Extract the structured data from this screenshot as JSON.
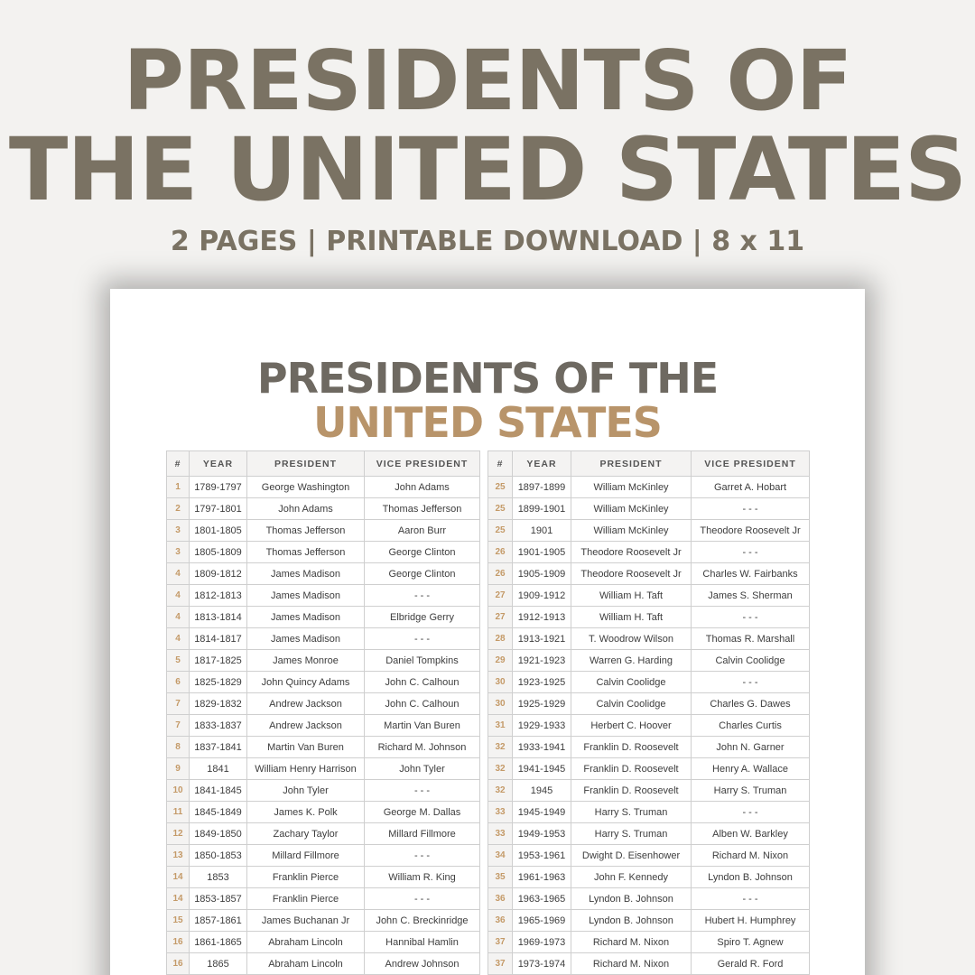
{
  "hero": {
    "title_line1": "PRESIDENTS OF",
    "title_line2": "THE UNITED STATES",
    "subtitle": "2 PAGES | PRINTABLE DOWNLOAD | 8 x 11"
  },
  "document": {
    "title_line1": "PRESIDENTS OF THE",
    "title_line2": "UNITED STATES",
    "colors": {
      "title_dark": "#6e6961",
      "title_accent": "#b8946a",
      "number_accent": "#c49a68"
    },
    "columns": [
      "#",
      "YEAR",
      "PRESIDENT",
      "VICE PRESIDENT"
    ],
    "left_table": [
      [
        "1",
        "1789-1797",
        "George Washington",
        "John Adams"
      ],
      [
        "2",
        "1797-1801",
        "John Adams",
        "Thomas Jefferson"
      ],
      [
        "3",
        "1801-1805",
        "Thomas Jefferson",
        "Aaron Burr"
      ],
      [
        "3",
        "1805-1809",
        "Thomas Jefferson",
        "George Clinton"
      ],
      [
        "4",
        "1809-1812",
        "James Madison",
        "George Clinton"
      ],
      [
        "4",
        "1812-1813",
        "James Madison",
        "- - -"
      ],
      [
        "4",
        "1813-1814",
        "James Madison",
        "Elbridge Gerry"
      ],
      [
        "4",
        "1814-1817",
        "James Madison",
        "- - -"
      ],
      [
        "5",
        "1817-1825",
        "James Monroe",
        "Daniel Tompkins"
      ],
      [
        "6",
        "1825-1829",
        "John Quincy Adams",
        "John C. Calhoun"
      ],
      [
        "7",
        "1829-1832",
        "Andrew Jackson",
        "John C. Calhoun"
      ],
      [
        "7",
        "1833-1837",
        "Andrew Jackson",
        "Martin Van Buren"
      ],
      [
        "8",
        "1837-1841",
        "Martin Van Buren",
        "Richard M. Johnson"
      ],
      [
        "9",
        "1841",
        "William Henry Harrison",
        "John Tyler"
      ],
      [
        "10",
        "1841-1845",
        "John Tyler",
        "- - -"
      ],
      [
        "11",
        "1845-1849",
        "James K. Polk",
        "George M. Dallas"
      ],
      [
        "12",
        "1849-1850",
        "Zachary Taylor",
        "Millard Fillmore"
      ],
      [
        "13",
        "1850-1853",
        "Millard Fillmore",
        "- - -"
      ],
      [
        "14",
        "1853",
        "Franklin Pierce",
        "William R. King"
      ],
      [
        "14",
        "1853-1857",
        "Franklin Pierce",
        "- - -"
      ],
      [
        "15",
        "1857-1861",
        "James Buchanan Jr",
        "John C. Breckinridge"
      ],
      [
        "16",
        "1861-1865",
        "Abraham Lincoln",
        "Hannibal Hamlin"
      ],
      [
        "16",
        "1865",
        "Abraham Lincoln",
        "Andrew Johnson"
      ]
    ],
    "right_table": [
      [
        "25",
        "1897-1899",
        "William McKinley",
        "Garret A. Hobart"
      ],
      [
        "25",
        "1899-1901",
        "William McKinley",
        "- - -"
      ],
      [
        "25",
        "1901",
        "William McKinley",
        "Theodore Roosevelt Jr"
      ],
      [
        "26",
        "1901-1905",
        "Theodore Roosevelt Jr",
        "- - -"
      ],
      [
        "26",
        "1905-1909",
        "Theodore Roosevelt Jr",
        "Charles W. Fairbanks"
      ],
      [
        "27",
        "1909-1912",
        "William H. Taft",
        "James S. Sherman"
      ],
      [
        "27",
        "1912-1913",
        "William H. Taft",
        "- - -"
      ],
      [
        "28",
        "1913-1921",
        "T. Woodrow Wilson",
        "Thomas R. Marshall"
      ],
      [
        "29",
        "1921-1923",
        "Warren G. Harding",
        "Calvin Coolidge"
      ],
      [
        "30",
        "1923-1925",
        "Calvin Coolidge",
        "- - -"
      ],
      [
        "30",
        "1925-1929",
        "Calvin Coolidge",
        "Charles G. Dawes"
      ],
      [
        "31",
        "1929-1933",
        "Herbert C. Hoover",
        "Charles Curtis"
      ],
      [
        "32",
        "1933-1941",
        "Franklin D. Roosevelt",
        "John N. Garner"
      ],
      [
        "32",
        "1941-1945",
        "Franklin D. Roosevelt",
        "Henry A. Wallace"
      ],
      [
        "32",
        "1945",
        "Franklin D. Roosevelt",
        "Harry S. Truman"
      ],
      [
        "33",
        "1945-1949",
        "Harry S. Truman",
        "- - -"
      ],
      [
        "33",
        "1949-1953",
        "Harry S. Truman",
        "Alben W. Barkley"
      ],
      [
        "34",
        "1953-1961",
        "Dwight D. Eisenhower",
        "Richard M. Nixon"
      ],
      [
        "35",
        "1961-1963",
        "John F. Kennedy",
        "Lyndon B. Johnson"
      ],
      [
        "36",
        "1963-1965",
        "Lyndon B. Johnson",
        "- - -"
      ],
      [
        "36",
        "1965-1969",
        "Lyndon B. Johnson",
        "Hubert H. Humphrey"
      ],
      [
        "37",
        "1969-1973",
        "Richard M. Nixon",
        "Spiro T. Agnew"
      ],
      [
        "37",
        "1973-1974",
        "Richard M. Nixon",
        "Gerald R. Ford"
      ]
    ]
  }
}
